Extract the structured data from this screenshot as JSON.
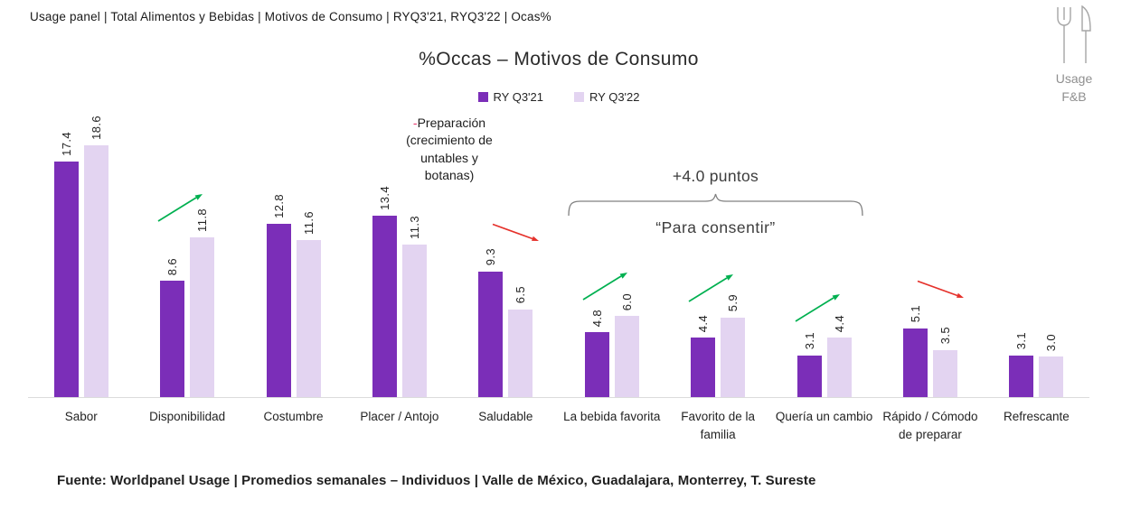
{
  "header": {
    "text": "Usage panel | Total Alimentos y Bebidas | Motivos de Consumo | RYQ3'21, RYQ3'22 | Ocas%"
  },
  "logo": {
    "icon": "fork-knife-icon",
    "line1": "Usage",
    "line2": "F&B"
  },
  "title": "%Occas – Motivos de Consumo",
  "legend": [
    {
      "label": "RY Q3'21",
      "color": "#7B2EB8"
    },
    {
      "label": "RY Q3'22",
      "color": "#E3D4F1"
    }
  ],
  "annotations": {
    "preparacion": {
      "dash": "-",
      "dash_color": "#E8346B",
      "lines": [
        "Preparación",
        "(crecimiento de",
        "untables y",
        "botanas)"
      ]
    },
    "bracket": {
      "top_label": "+4.0 puntos",
      "bottom_label": "“Para consentir”"
    }
  },
  "footer": {
    "text": "Fuente: Worldpanel Usage | Promedios semanales – Individuos | Valle de México, Guadalajara,  Monterrey, T. Sureste"
  },
  "colors": {
    "bar_2021": "#7B2EB8",
    "bar_2022": "#E3D4F1",
    "trend_up": "#00B050",
    "trend_down": "#E5312B",
    "axis_line": "#DCDCDC"
  },
  "chart_data": {
    "type": "bar",
    "title": "%Occas – Motivos de Consumo",
    "categories": [
      "Sabor",
      "Disponibilidad",
      "Costumbre",
      "Placer / Antojo",
      "Saludable",
      "La bebida favorita",
      "Favorito de la familia",
      "Quería un cambio",
      "Rápido / Cómodo de preparar",
      "Refrescante"
    ],
    "series": [
      {
        "name": "RY Q3'21",
        "values": [
          17.4,
          8.6,
          12.8,
          13.4,
          9.3,
          4.8,
          4.4,
          3.1,
          5.1,
          3.1
        ]
      },
      {
        "name": "RY Q3'22",
        "values": [
          18.6,
          11.8,
          11.6,
          11.3,
          6.5,
          6.0,
          5.9,
          4.4,
          3.5,
          3.0
        ]
      }
    ],
    "value_labels": "rotated 90° above bars, one decimal",
    "trends": [
      {
        "category_index": 1,
        "direction": "up"
      },
      {
        "category_index": 4,
        "direction": "down"
      },
      {
        "category_index": 5,
        "direction": "up"
      },
      {
        "category_index": 6,
        "direction": "up"
      },
      {
        "category_index": 7,
        "direction": "up"
      },
      {
        "category_index": 8,
        "direction": "down"
      }
    ],
    "ylim": [
      0,
      20
    ],
    "grid": false,
    "y_axis_visible": false,
    "legend_position": "top-center"
  }
}
